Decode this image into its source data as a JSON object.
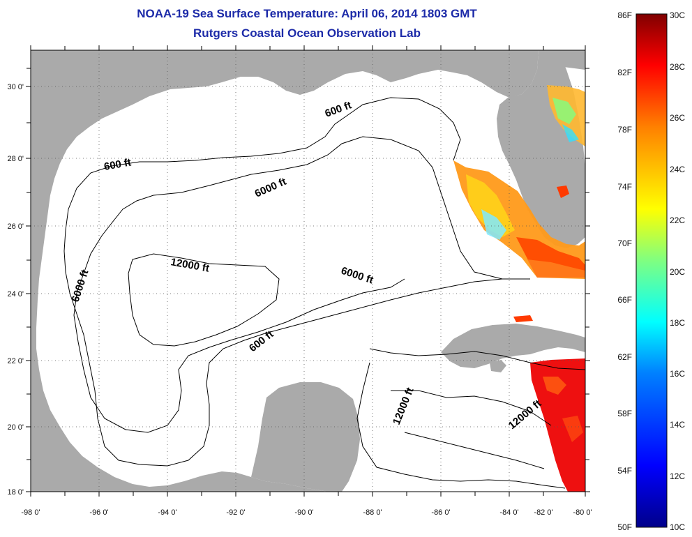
{
  "title": {
    "line1": "NOAA-19 Sea Surface Temperature:  April 06, 2014 1803 GMT",
    "line2": "Rutgers Coastal Ocean Observation Lab"
  },
  "map": {
    "lon_ticks": [
      "-98 0'",
      "-96 0'",
      "-94 0'",
      "-92 0'",
      "-90 0'",
      "-88 0'",
      "-86 0'",
      "-84 0'",
      "-82 0'",
      "-80 0'"
    ],
    "lat_ticks": [
      "18 0'",
      "20 0'",
      "22 0'",
      "24 0'",
      "26 0'",
      "28 0'",
      "30 0'"
    ],
    "contour_labels": [
      "600 ft",
      "6000 ft",
      "600 ft",
      "6000 ft",
      "12000 ft",
      "6000 ft",
      "600 ft",
      "12000 ft",
      "12000 ft"
    ],
    "colors": {
      "land": "#aaaaaa",
      "ocean": "#ffffff",
      "grid": "#555555"
    }
  },
  "colorbar": {
    "fahrenheit": [
      "86F",
      "82F",
      "78F",
      "74F",
      "70F",
      "66F",
      "62F",
      "58F",
      "54F",
      "50F"
    ],
    "celsius": [
      "30C",
      "28C",
      "26C",
      "24C",
      "22C",
      "20C",
      "18C",
      "16C",
      "14C",
      "12C",
      "10C"
    ],
    "colors": [
      "#00008a",
      "#0000ff",
      "#0080ff",
      "#00ffff",
      "#80ff80",
      "#ffff00",
      "#ff8000",
      "#ff0000",
      "#800000"
    ]
  }
}
